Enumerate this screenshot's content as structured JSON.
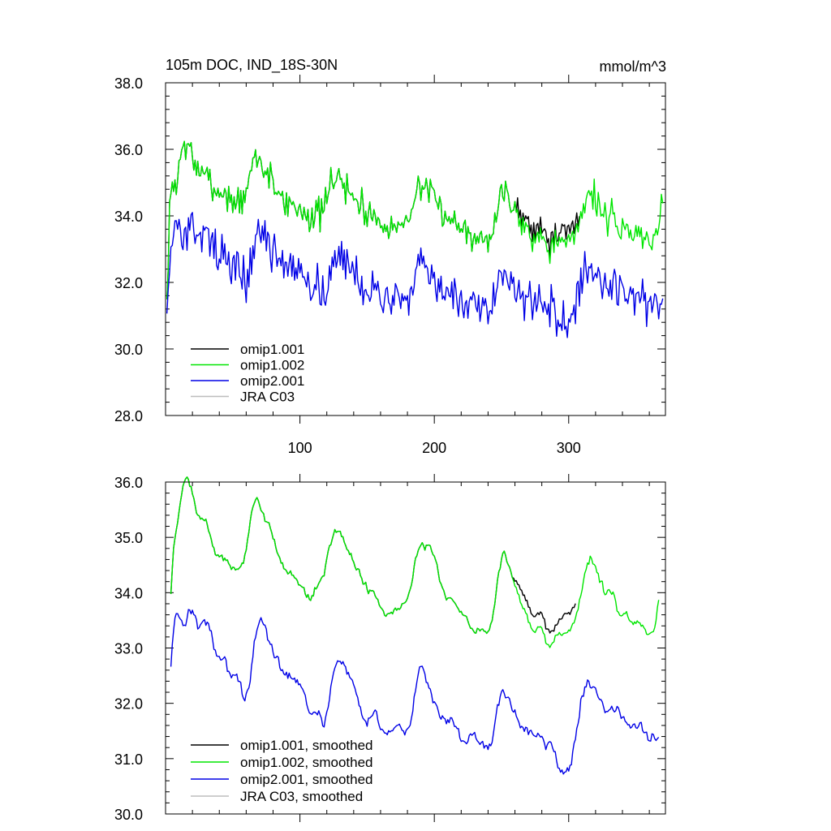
{
  "chart_data": [
    {
      "type": "line",
      "title_left": "105m DOC, IND_18S-30N",
      "title_right": "mmol/m^3",
      "xlim": [
        0,
        372
      ],
      "ylim": [
        28,
        38
      ],
      "x_ticks": [
        100,
        200,
        300
      ],
      "x_tick_labels": [
        "100",
        "200",
        "300"
      ],
      "y_ticks": [
        28,
        30,
        32,
        34,
        36,
        38
      ],
      "y_tick_labels": [
        "28.0",
        "30.0",
        "32.0",
        "34.0",
        "36.0",
        "38.0"
      ],
      "legend": [
        "omip1.001",
        "omip1.002",
        "omip2.001",
        "JRA C03"
      ],
      "series": [
        {
          "name": "omip1.001",
          "color": "#000000",
          "x_start": 1,
          "x_step": 1,
          "values": []
        },
        {
          "name": "omip1.002",
          "color": "#00e600",
          "x_start": 1,
          "x_step": 1,
          "values": []
        },
        {
          "name": "omip2.001",
          "color": "#0000e6",
          "x_start": 1,
          "x_step": 1,
          "values": []
        },
        {
          "name": "JRA C03",
          "color": "#bdbdbd",
          "x_start": 1,
          "x_step": 1,
          "values": []
        }
      ]
    },
    {
      "type": "line",
      "xlim": [
        0,
        372
      ],
      "ylim": [
        30,
        36
      ],
      "x_ticks": [
        100,
        200,
        300
      ],
      "x_tick_labels": [],
      "y_ticks": [
        30,
        31,
        32,
        33,
        34,
        35,
        36
      ],
      "y_tick_labels": [
        "30.0",
        "31.0",
        "32.0",
        "33.0",
        "34.0",
        "35.0",
        "36.0"
      ],
      "legend": [
        "omip1.001, smoothed",
        "omip1.002, smoothed",
        "omip2.001, smoothed",
        "JRA C03, smoothed"
      ],
      "series": [
        {
          "name": "omip1.001, smoothed",
          "color": "#000000",
          "x_start": 4,
          "x_step": 1,
          "values": []
        },
        {
          "name": "omip1.002, smoothed",
          "color": "#00e600",
          "x_start": 4,
          "x_step": 1,
          "values": []
        },
        {
          "name": "omip2.001, smoothed",
          "color": "#0000e6",
          "x_start": 4,
          "x_step": 1,
          "values": []
        },
        {
          "name": "JRA C03, smoothed",
          "color": "#bdbdbd",
          "x_start": 4,
          "x_step": 1,
          "values": []
        }
      ]
    }
  ]
}
